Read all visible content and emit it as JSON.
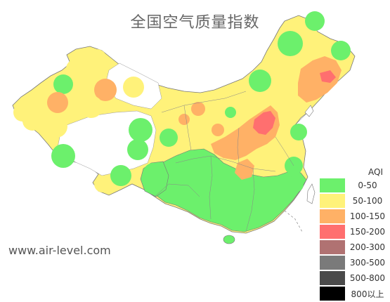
{
  "title": "全国空气质量指数",
  "website": "www.air-level.com",
  "legend": {
    "title": "AQI",
    "items": [
      {
        "label": "0-50",
        "color": "#6cf06c"
      },
      {
        "label": "50-100",
        "color": "#fff27a"
      },
      {
        "label": "100-150",
        "color": "#ffb166"
      },
      {
        "label": "150-200",
        "color": "#ff6f6f"
      },
      {
        "label": "200-300",
        "color": "#b07272"
      },
      {
        "label": "300-500",
        "color": "#7a7a7a"
      },
      {
        "label": "500-800",
        "color": "#4a4a4a"
      },
      {
        "label": "800以上",
        "color": "#000000"
      }
    ]
  },
  "colors": {
    "map_border": "#777777",
    "good": "#6cf06c",
    "moderate": "#fff27a",
    "unhealthy_sensitive": "#ffb166",
    "unhealthy": "#ff6f6f"
  }
}
